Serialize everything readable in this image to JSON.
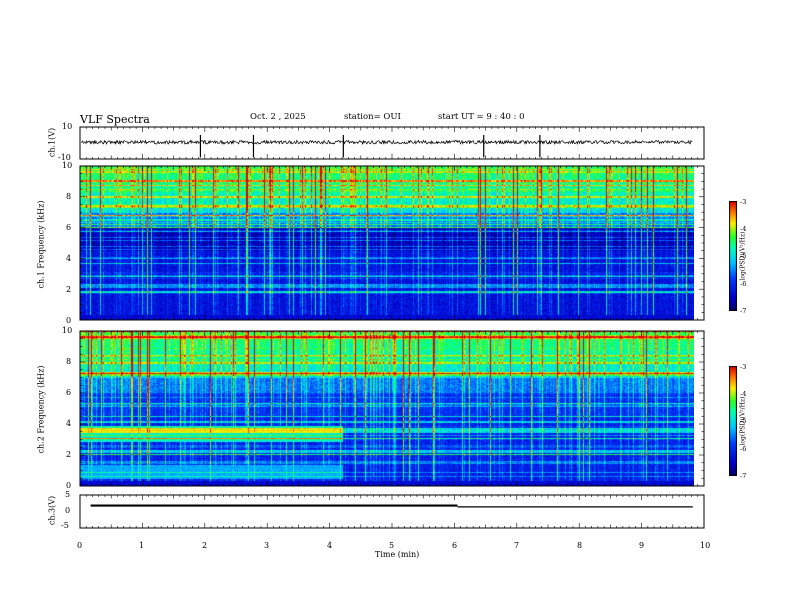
{
  "header": {
    "title": "VLF Spectra",
    "date": "Oct. 2 , 2025",
    "station": "station= OUI",
    "start": "start  UT =   9 : 40 : 0"
  },
  "chart_data": [
    {
      "type": "line",
      "id": "ch1-waveform",
      "ylabel": "ch.1(V)",
      "ylim": [
        -10,
        10
      ],
      "ytick_labels": [
        "10",
        "-10"
      ],
      "xlim": [
        0,
        10
      ],
      "baseline": 0.5,
      "spikes_min": [
        1.93,
        2.78,
        4.22,
        6.47,
        7.37
      ]
    },
    {
      "type": "heatmap",
      "id": "ch1-spectrogram",
      "ylabel": "ch.1\nFrequency (kHz)",
      "ylim": [
        0,
        10
      ],
      "ytick_labels": [
        "0",
        "2",
        "4",
        "6",
        "8",
        "10"
      ],
      "xlim": [
        0,
        10
      ],
      "colorbar": {
        "label": "log(PSD)(V²/Hz)",
        "range": [
          -7,
          -3
        ],
        "tick_labels": [
          "-3",
          "-4",
          "-5",
          "-6",
          "-7"
        ]
      }
    },
    {
      "type": "heatmap",
      "id": "ch2-spectrogram",
      "ylabel": "ch.2\nFrequency (kHz)",
      "ylim": [
        0,
        10
      ],
      "ytick_labels": [
        "0",
        "2",
        "4",
        "6",
        "8",
        "10"
      ],
      "xlim": [
        0,
        10
      ],
      "band_end_min": 4.2,
      "colorbar": {
        "label": "log(PSD)(V²/Hz)",
        "range": [
          -7,
          -3
        ],
        "tick_labels": [
          "-3",
          "-4",
          "-5",
          "-6",
          "-7"
        ]
      }
    },
    {
      "type": "line",
      "id": "ch3-waveform",
      "ylabel": "ch.3(V)",
      "ylim": [
        -5,
        5
      ],
      "ytick_labels": [
        "5",
        "0",
        "-5"
      ],
      "xlim": [
        0,
        10
      ],
      "segments": [
        {
          "x": [
            0.17,
            6.05
          ],
          "y": 1.8
        },
        {
          "x": [
            6.05,
            9.82
          ],
          "y": 1.4
        }
      ]
    }
  ],
  "x_axis": {
    "label": "Time (min)",
    "range": [
      0,
      10
    ],
    "tick_labels": [
      "0",
      "1",
      "2",
      "3",
      "4",
      "5",
      "6",
      "7",
      "8",
      "9",
      "10"
    ]
  }
}
